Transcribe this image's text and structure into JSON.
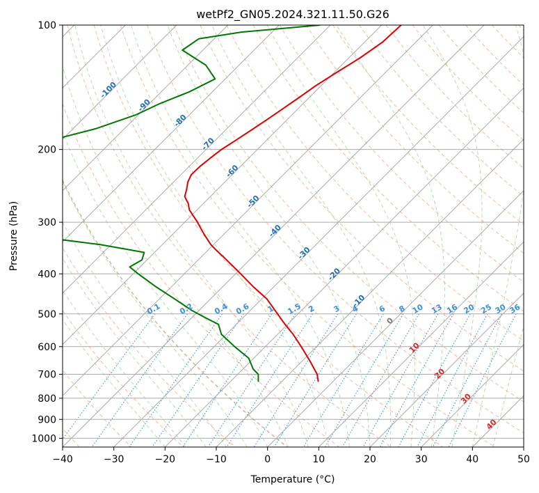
{
  "chart_data": {
    "type": "skew-t",
    "title": "wetPf2_GN05.2024.321.11.50.G26",
    "xlabel": "Temperature (°C)",
    "ylabel": "Pressure (hPa)",
    "xlim": [
      -40,
      50
    ],
    "ylim": [
      1050,
      100
    ],
    "y_scale": "log",
    "grid": true,
    "x_ticks": [
      -40,
      -30,
      -20,
      -10,
      0,
      10,
      20,
      30,
      40,
      50
    ],
    "y_ticks": [
      100,
      200,
      300,
      400,
      500,
      600,
      700,
      800,
      900,
      1000
    ],
    "isotherm_labels": [
      {
        "t": -100,
        "p": 145
      },
      {
        "t": -90,
        "p": 158
      },
      {
        "t": -80,
        "p": 172
      },
      {
        "t": -70,
        "p": 196
      },
      {
        "t": -60,
        "p": 228
      },
      {
        "t": -50,
        "p": 270
      },
      {
        "t": -40,
        "p": 318
      },
      {
        "t": -30,
        "p": 360
      },
      {
        "t": -20,
        "p": 405
      },
      {
        "t": -10,
        "p": 470
      },
      {
        "t": 0,
        "p": 525
      },
      {
        "t": 10,
        "p": 610
      },
      {
        "t": 20,
        "p": 705
      },
      {
        "t": 30,
        "p": 810
      },
      {
        "t": 40,
        "p": 935
      }
    ],
    "mixing_ratio_labels": [
      "0.1",
      "0.2",
      "0.4",
      "0.6",
      "1",
      "1.5",
      "2",
      "3",
      "4",
      "6",
      "8",
      "10",
      "13",
      "16",
      "20",
      "25",
      "30",
      "36"
    ],
    "series": [
      {
        "color": "#dd0000",
        "points": [
          [
            100,
            -56.2
          ],
          [
            110,
            -56.5
          ],
          [
            120,
            -57.8
          ],
          [
            130,
            -59.5
          ],
          [
            140,
            -61
          ],
          [
            150,
            -62
          ],
          [
            160,
            -63
          ],
          [
            170,
            -64
          ],
          [
            180,
            -65
          ],
          [
            190,
            -66
          ],
          [
            200,
            -67
          ],
          [
            210,
            -67.5
          ],
          [
            220,
            -67.9
          ],
          [
            230,
            -68
          ],
          [
            240,
            -67.2
          ],
          [
            250,
            -66
          ],
          [
            260,
            -65
          ],
          [
            270,
            -63
          ],
          [
            280,
            -61.5
          ],
          [
            300,
            -57.5
          ],
          [
            320,
            -54
          ],
          [
            340,
            -50.5
          ],
          [
            350,
            -48.5
          ],
          [
            370,
            -44.5
          ],
          [
            400,
            -39
          ],
          [
            430,
            -34
          ],
          [
            460,
            -29
          ],
          [
            500,
            -24
          ],
          [
            530,
            -20.5
          ],
          [
            560,
            -17
          ],
          [
            600,
            -13
          ],
          [
            650,
            -8.5
          ],
          [
            700,
            -4.5
          ],
          [
            730,
            -2.8
          ]
        ]
      },
      {
        "color": "#007700",
        "points": [
          [
            100,
            -72
          ],
          [
            104,
            -86
          ],
          [
            108,
            -93
          ],
          [
            115,
            -94
          ],
          [
            125,
            -86.5
          ],
          [
            135,
            -82
          ],
          [
            145,
            -84.5
          ],
          [
            155,
            -88
          ],
          [
            165,
            -90.5
          ],
          [
            178,
            -95.5
          ],
          [
            188,
            -101
          ],
          [
            200,
            -98.5
          ],
          [
            210,
            -97.5
          ],
          [
            220,
            -100
          ],
          [
            232,
            -104.5
          ],
          [
            240,
            -107
          ],
          [
            255,
            -98
          ],
          [
            265,
            -92
          ],
          [
            275,
            -93.5
          ],
          [
            285,
            -99
          ],
          [
            297,
            -107
          ],
          [
            305,
            -105.5
          ],
          [
            315,
            -97
          ],
          [
            325,
            -86
          ],
          [
            340,
            -72
          ],
          [
            355,
            -62
          ],
          [
            370,
            -61
          ],
          [
            385,
            -62
          ],
          [
            400,
            -59
          ],
          [
            430,
            -53
          ],
          [
            460,
            -47
          ],
          [
            490,
            -41.5
          ],
          [
            510,
            -37.5
          ],
          [
            530,
            -33.5
          ],
          [
            560,
            -31
          ],
          [
            600,
            -26
          ],
          [
            640,
            -21
          ],
          [
            680,
            -18
          ],
          [
            700,
            -16
          ],
          [
            730,
            -14.5
          ]
        ]
      }
    ]
  }
}
